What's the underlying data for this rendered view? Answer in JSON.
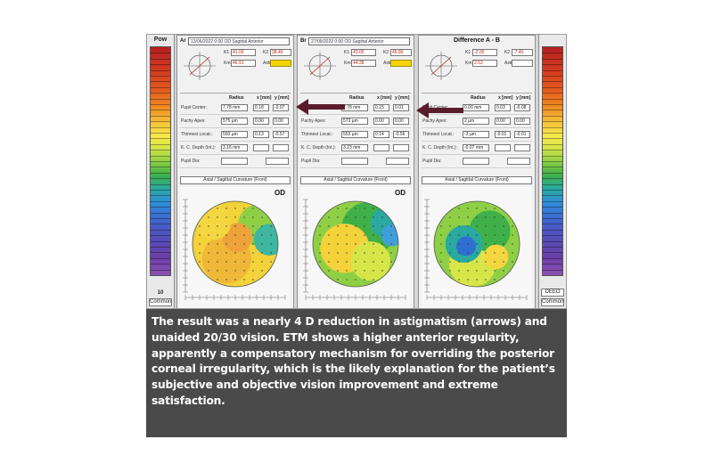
{
  "figure": {
    "legend_left": {
      "title": "Pow",
      "foot": [
        "10",
        "Common"
      ]
    },
    "legend_right": {
      "title": "",
      "foot": [
        "DEEO",
        "Common"
      ]
    },
    "arrow_color": "#5a1c2c",
    "panels": [
      {
        "label": "Ar",
        "selector": "13/06/2022 0:00 OD Sagittal Anterior",
        "k_values": [
          "41.00",
          "38.40",
          "46.91",
          "yellow"
        ],
        "k_labels": [
          "K1",
          "K2",
          "Km",
          "Astig"
        ],
        "rows": [
          {
            "label": "Pupil Center:",
            "v1": "7.78 mm",
            "v2": "0.18",
            "v3": "-0.07"
          },
          {
            "label": "Pachy Apex:",
            "v1": "575 µm",
            "v2": "0.00",
            "v3": "0.00"
          },
          {
            "label": "Thinnest Locat.:",
            "v1": "550 µm",
            "v2": "0.13",
            "v3": "-0.57"
          },
          {
            "label": "K. C. Depth (Int.):",
            "v1": "3.16 mm",
            "v2": "",
            "v3": ""
          },
          {
            "label": "Pupil Dia:",
            "v1": "",
            "v2": "",
            "v3": ""
          }
        ],
        "map_title": "Axial / Sagittal Curvature (Front)",
        "eye": "OD"
      },
      {
        "label": "Br",
        "selector": "27/09/2022 0:00 OD Sagittal Anterior",
        "k_values": [
          "43.00",
          "45.80",
          "44.38",
          "yellow"
        ],
        "k_labels": [
          "K1",
          "K2",
          "Km",
          "Astig"
        ],
        "rows": [
          {
            "label": "Pupil Center:",
            "v1": "7.78 mm",
            "v2": "0.15",
            "v3": "0.01"
          },
          {
            "label": "Pachy Apex:",
            "v1": "573 µm",
            "v2": "0.00",
            "v3": "0.00"
          },
          {
            "label": "Thinnest Locat.:",
            "v1": "553 µm",
            "v2": "0.14",
            "v3": "-0.56"
          },
          {
            "label": "K. C. Depth (Int.):",
            "v1": "3.23 mm",
            "v2": "",
            "v3": ""
          },
          {
            "label": "Pupil Dia:",
            "v1": "",
            "v2": "",
            "v3": ""
          }
        ],
        "map_title": "Axial / Sagittal Curvature (Front)",
        "eye": "OD"
      },
      {
        "label": "",
        "selector": "Difference A - B",
        "k_values": [
          "-2.00",
          "-7.40",
          "2.53",
          ""
        ],
        "k_labels": [
          "K1",
          "K2",
          "Km",
          "Astig"
        ],
        "rows": [
          {
            "label": "Pupil Center:",
            "v1": "0.00 mm",
            "v2": "0.03",
            "v3": "-0.08"
          },
          {
            "label": "Pachy Apex:",
            "v1": "2 µm",
            "v2": "0.00",
            "v3": "0.00"
          },
          {
            "label": "Thinnest Locat.:",
            "v1": "-3 µm",
            "v2": "-0.01",
            "v3": "-0.01"
          },
          {
            "label": "K. C. Depth (Int.):",
            "v1": "-0.07 mm",
            "v2": "",
            "v3": ""
          },
          {
            "label": "Pupil Dia:",
            "v1": "",
            "v2": "",
            "v3": ""
          }
        ],
        "map_title": "Axial / Sagittal Curvature (Front)",
        "eye": ""
      }
    ],
    "table_headers": [
      "Radius",
      "x [mm]",
      "y [mm]"
    ]
  },
  "caption": "The result was a nearly 4 D reduction in astigmatism (arrows) and unaided 20/30 vision. ETM shows a higher anterior regularity, apparently a compensatory mechanism for overriding the posterior corneal irregularity, which is the likely explanation for the patient’s subjective and objective vision improvement and extreme satisfaction."
}
